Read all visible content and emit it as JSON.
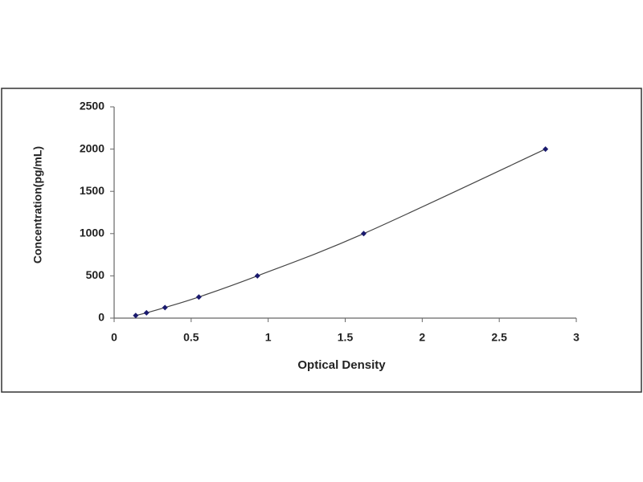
{
  "chart_data": {
    "type": "scatter",
    "x_label": "Optical Density",
    "y_label": "Concentration(pg/mL)",
    "series": [
      {
        "color": "#1a1a6e",
        "line_color": "#444444",
        "x": [
          0.14,
          0.21,
          0.33,
          0.55,
          0.93,
          1.62,
          2.8
        ],
        "values": [
          31.25,
          62.5,
          125,
          250,
          500,
          1000,
          2000
        ]
      }
    ],
    "xlim": [
      0,
      3
    ],
    "xticks": [
      0,
      0.5,
      1,
      1.5,
      2,
      2.5,
      3
    ],
    "ylim": [
      0,
      2500
    ],
    "yticks": [
      0,
      500,
      1000,
      1500,
      2000,
      2500
    ],
    "grid": false
  }
}
